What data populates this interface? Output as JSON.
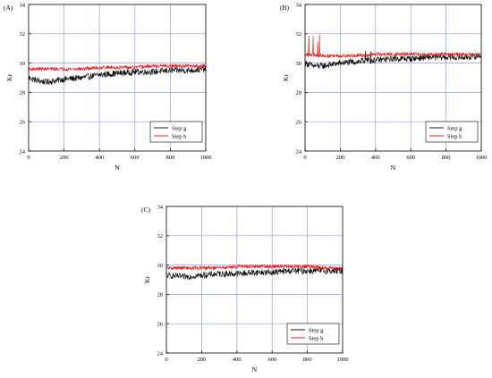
{
  "chart_data": [
    {
      "type": "line",
      "panel_label": "(A)",
      "xlabel": "N",
      "ylabel": "Kr",
      "xlim": [
        0,
        1000
      ],
      "ylim": [
        24,
        34
      ],
      "xticks": [
        "0",
        "200",
        "400",
        "600",
        "800",
        "1000"
      ],
      "yticks": [
        "24",
        "26",
        "28",
        "30",
        "32",
        "34"
      ],
      "grid": true,
      "legend_position": "bottom-right",
      "series": [
        {
          "name": "Step g",
          "color": "#000000",
          "x": [
            0,
            50,
            100,
            150,
            200,
            300,
            400,
            500,
            600,
            700,
            800,
            900,
            1000
          ],
          "y": [
            29.0,
            28.8,
            28.7,
            28.8,
            28.9,
            29.0,
            29.2,
            29.3,
            29.4,
            29.4,
            29.5,
            29.5,
            29.6
          ]
        },
        {
          "name": "Step h",
          "color": "#ff0000",
          "x": [
            0,
            100,
            200,
            300,
            400,
            500,
            600,
            700,
            800,
            900,
            1000
          ],
          "y": [
            29.6,
            29.6,
            29.6,
            29.6,
            29.7,
            29.7,
            29.7,
            29.8,
            29.8,
            29.8,
            29.8
          ]
        }
      ]
    },
    {
      "type": "line",
      "panel_label": "(B)",
      "xlabel": "N",
      "ylabel": "Kr",
      "xlim": [
        0,
        1000
      ],
      "ylim": [
        24,
        34
      ],
      "xticks": [
        "0",
        "200",
        "400",
        "600",
        "800",
        "1000"
      ],
      "yticks": [
        "24",
        "26",
        "28",
        "30",
        "32",
        "34"
      ],
      "grid": true,
      "legend_position": "bottom-right",
      "series": [
        {
          "name": "Step g",
          "color": "#000000",
          "x": [
            0,
            50,
            100,
            150,
            200,
            300,
            400,
            500,
            600,
            700,
            800,
            900,
            1000
          ],
          "y": [
            30.0,
            29.8,
            29.8,
            29.9,
            30.0,
            30.1,
            30.2,
            30.3,
            30.3,
            30.4,
            30.4,
            30.4,
            30.5
          ]
        },
        {
          "name": "Step h",
          "color": "#ff0000",
          "x": [
            0,
            100,
            200,
            300,
            400,
            500,
            600,
            700,
            800,
            900,
            1000
          ],
          "y": [
            30.6,
            30.5,
            30.5,
            30.5,
            30.6,
            30.6,
            30.6,
            30.6,
            30.6,
            30.6,
            30.6
          ]
        }
      ]
    },
    {
      "type": "line",
      "panel_label": "(C)",
      "xlabel": "N",
      "ylabel": "Kr",
      "xlim": [
        0,
        1000
      ],
      "ylim": [
        24,
        34
      ],
      "xticks": [
        "0",
        "200",
        "400",
        "600",
        "800",
        "1000"
      ],
      "yticks": [
        "24",
        "26",
        "28",
        "30",
        "32",
        "34"
      ],
      "grid": true,
      "legend_position": "bottom-right",
      "series": [
        {
          "name": "Step g",
          "color": "#000000",
          "x": [
            0,
            100,
            200,
            300,
            400,
            500,
            600,
            700,
            800,
            900,
            1000
          ],
          "y": [
            29.3,
            29.2,
            29.3,
            29.4,
            29.4,
            29.5,
            29.5,
            29.6,
            29.6,
            29.6,
            29.6
          ]
        },
        {
          "name": "Step h",
          "color": "#ff0000",
          "x": [
            0,
            100,
            200,
            300,
            400,
            500,
            600,
            700,
            800,
            900,
            1000
          ],
          "y": [
            29.8,
            29.8,
            29.8,
            29.8,
            29.9,
            29.9,
            29.9,
            29.9,
            29.9,
            29.8,
            29.8
          ]
        }
      ]
    }
  ]
}
